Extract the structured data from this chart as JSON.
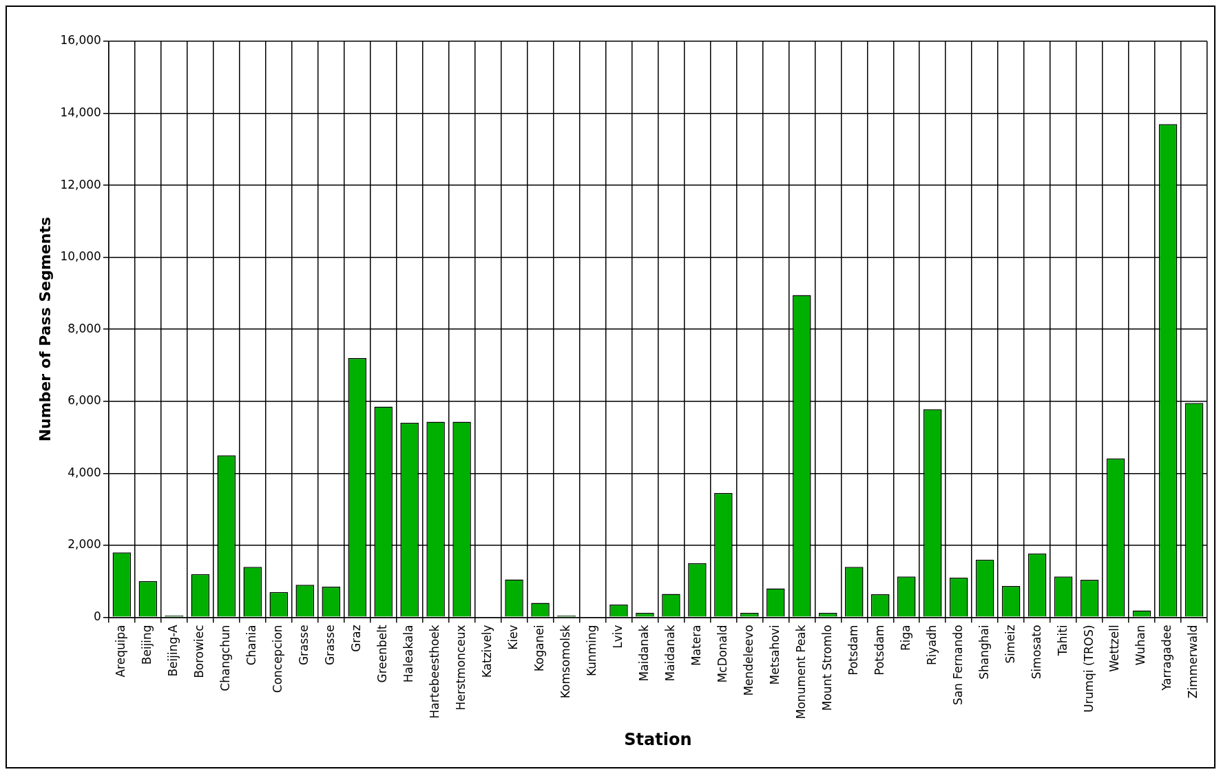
{
  "chart_data": {
    "type": "bar",
    "xlabel": "Station",
    "ylabel": "Number of Pass Segments",
    "categories": [
      "Arequipa",
      "Beijing",
      "Beijing-A",
      "Borowiec",
      "Changchun",
      "Chania",
      "Concepcion",
      "Grasse",
      "Grasse",
      "Graz",
      "Greenbelt",
      "Haleakala",
      "Hartebeesthoek",
      "Herstmonceux",
      "Katzively",
      "Kiev",
      "Koganei",
      "Komsomolsk",
      "Kunming",
      "Lviv",
      "Maidanak",
      "Maidanak",
      "Matera",
      "McDonald",
      "Mendeleevo",
      "Metsahovi",
      "Monument Peak",
      "Mount Stromlo",
      "Potsdam",
      "Potsdam",
      "Riga",
      "Riyadh",
      "San Fernando",
      "Shanghai",
      "Simeiz",
      "Simosato",
      "Tahiti",
      "Urumqi (TROS)",
      "Wettzell",
      "Wuhan",
      "Yarragadee",
      "Zimmerwald"
    ],
    "values": [
      1800,
      1000,
      50,
      1200,
      4500,
      1400,
      700,
      900,
      850,
      7200,
      5850,
      5400,
      5430,
      5430,
      0,
      1050,
      400,
      50,
      0,
      350,
      120,
      650,
      1500,
      3450,
      120,
      800,
      8950,
      120,
      1400,
      640,
      1130,
      5780,
      1100,
      1600,
      870,
      1770,
      1130,
      1040,
      4410,
      190,
      13700,
      5950
    ],
    "color": "#00b000",
    "ylim": [
      0,
      16000
    ],
    "yticks": [
      {
        "value": 0,
        "label": "0"
      },
      {
        "value": 2000,
        "label": "2,000"
      },
      {
        "value": 4000,
        "label": "4,000"
      },
      {
        "value": 6000,
        "label": "6,000"
      },
      {
        "value": 8000,
        "label": "8,000"
      },
      {
        "value": 10000,
        "label": "10,000"
      },
      {
        "value": 12000,
        "label": "12,000"
      },
      {
        "value": 14000,
        "label": "14,000"
      },
      {
        "value": 16000,
        "label": "16,000"
      }
    ],
    "grid": true,
    "legend": false
  }
}
